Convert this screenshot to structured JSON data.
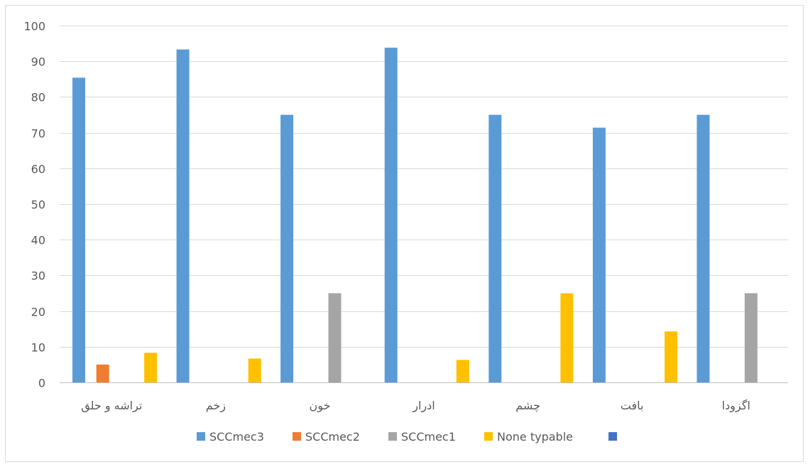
{
  "chart_data": {
    "type": "bar",
    "title": "",
    "xlabel": "",
    "ylabel": "",
    "ylim": [
      0,
      100
    ],
    "yticks": [
      0,
      10,
      20,
      30,
      40,
      50,
      60,
      70,
      80,
      90,
      100
    ],
    "grid": true,
    "legend_position": "bottom",
    "categories": [
      "تراشه و حلق",
      "زخم",
      "خون",
      "ادرار",
      "چشم",
      "بافت",
      "اگزودا"
    ],
    "series": [
      {
        "name": "SCCmec3",
        "color": "#5b9bd5",
        "values": [
          85.4,
          93.3,
          75,
          93.8,
          75,
          71.4,
          75
        ]
      },
      {
        "name": "SCCmec2",
        "color": "#ed7d31",
        "values": [
          5,
          0,
          0,
          0,
          0,
          0,
          0
        ]
      },
      {
        "name": "SCCmec1",
        "color": "#a5a5a5",
        "values": [
          0,
          0,
          25,
          0,
          0,
          0,
          25
        ]
      },
      {
        "name": "None typable",
        "color": "#ffc000",
        "values": [
          8.3,
          6.7,
          0,
          6.3,
          25,
          14.3,
          0
        ]
      },
      {
        "name": "",
        "color": "#4472c4",
        "values": [
          0,
          0,
          0,
          0,
          0,
          0,
          0
        ]
      }
    ]
  }
}
